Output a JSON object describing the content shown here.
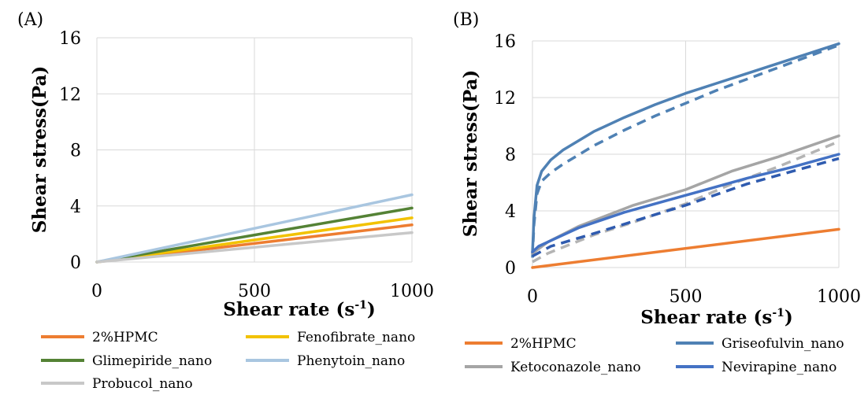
{
  "chart_data": [
    {
      "panel_label": "(A)",
      "type": "line",
      "xlabel": "Shear rate (s",
      "xlabel_sup": "-1",
      "xlabel_close": ")",
      "ylabel": "Shear stress(Pa)",
      "xlim": [
        0,
        1000
      ],
      "ylim": [
        0,
        16
      ],
      "xticks": [
        0,
        500,
        1000
      ],
      "yticks": [
        0,
        4,
        8,
        12,
        16
      ],
      "grid": true,
      "legend_position": "bottom",
      "series": [
        {
          "name": "2%HPMC",
          "color": "#ED7D31",
          "dashed": false,
          "points": [
            [
              0,
              0
            ],
            [
              1000,
              2.65
            ]
          ]
        },
        {
          "name": "Fenofibrate_nano",
          "color": "#F2C200",
          "dashed": false,
          "points": [
            [
              0,
              0
            ],
            [
              1000,
              3.15
            ]
          ]
        },
        {
          "name": "Glimepiride_nano",
          "color": "#548235",
          "dashed": false,
          "points": [
            [
              0,
              0
            ],
            [
              1000,
              3.85
            ]
          ]
        },
        {
          "name": "Phenytoin_nano",
          "color": "#A9C6E0",
          "dashed": false,
          "points": [
            [
              0,
              0
            ],
            [
              1000,
              4.8
            ]
          ]
        },
        {
          "name": "Probucol_nano",
          "color": "#C8C8C8",
          "dashed": false,
          "points": [
            [
              0,
              0
            ],
            [
              1000,
              2.1
            ]
          ]
        }
      ]
    },
    {
      "panel_label": "(B)",
      "type": "line",
      "xlabel": "Shear rate (s",
      "xlabel_sup": "-1",
      "xlabel_close": ")",
      "ylabel": "Shear stress(Pa)",
      "xlim": [
        0,
        1000
      ],
      "ylim": [
        0,
        16
      ],
      "xticks": [
        0,
        500,
        1000
      ],
      "yticks": [
        0,
        4,
        8,
        12,
        16
      ],
      "grid": true,
      "legend_position": "bottom",
      "series": [
        {
          "name": "2%HPMC",
          "color": "#ED7D31",
          "dashed": false,
          "points": [
            [
              0,
              0
            ],
            [
              1000,
              2.7
            ]
          ]
        },
        {
          "name": "Griseofulvin_nano",
          "color": "#4F81B4",
          "dashed": false,
          "points": [
            [
              0,
              1
            ],
            [
              5,
              3.5
            ],
            [
              15,
              5.8
            ],
            [
              30,
              6.8
            ],
            [
              60,
              7.6
            ],
            [
              100,
              8.3
            ],
            [
              200,
              9.6
            ],
            [
              300,
              10.6
            ],
            [
              400,
              11.5
            ],
            [
              500,
              12.3
            ],
            [
              600,
              13.0
            ],
            [
              700,
              13.7
            ],
            [
              800,
              14.4
            ],
            [
              900,
              15.1
            ],
            [
              1000,
              15.8
            ]
          ]
        },
        {
          "name": "",
          "color": "#4F81B4",
          "dashed": true,
          "points": [
            [
              0,
              0.7
            ],
            [
              5,
              3
            ],
            [
              15,
              5.2
            ],
            [
              30,
              6.1
            ],
            [
              60,
              6.7
            ],
            [
              100,
              7.3
            ],
            [
              200,
              8.6
            ],
            [
              300,
              9.7
            ],
            [
              400,
              10.7
            ],
            [
              500,
              11.6
            ],
            [
              600,
              12.5
            ],
            [
              700,
              13.3
            ],
            [
              800,
              14.1
            ],
            [
              900,
              14.9
            ],
            [
              1000,
              15.7
            ]
          ]
        },
        {
          "name": "Ketoconazole_nano",
          "color": "#A5A5A5",
          "dashed": false,
          "points": [
            [
              0,
              1.0
            ],
            [
              50,
              1.8
            ],
            [
              150,
              2.9
            ],
            [
              330,
              4.4
            ],
            [
              500,
              5.5
            ],
            [
              650,
              6.8
            ],
            [
              800,
              7.8
            ],
            [
              1000,
              9.3
            ]
          ]
        },
        {
          "name": "",
          "color": "#B4B4B4",
          "dashed": true,
          "points": [
            [
              0,
              0.4
            ],
            [
              50,
              1.0
            ],
            [
              200,
              2.3
            ],
            [
              330,
              3.2
            ],
            [
              500,
              4.5
            ],
            [
              650,
              5.9
            ],
            [
              800,
              7.1
            ],
            [
              1000,
              8.9
            ]
          ]
        },
        {
          "name": "Nevirapine_nano",
          "color": "#4472C4",
          "dashed": false,
          "points": [
            [
              0,
              1.1
            ],
            [
              20,
              1.5
            ],
            [
              60,
              1.9
            ],
            [
              150,
              2.8
            ],
            [
              300,
              3.9
            ],
            [
              500,
              5.1
            ],
            [
              700,
              6.3
            ],
            [
              850,
              7.1
            ],
            [
              1000,
              8.0
            ]
          ]
        },
        {
          "name": "",
          "color": "#2F5BAF",
          "dashed": true,
          "points": [
            [
              0,
              0.8
            ],
            [
              60,
              1.5
            ],
            [
              200,
              2.4
            ],
            [
              350,
              3.4
            ],
            [
              500,
              4.4
            ],
            [
              700,
              5.9
            ],
            [
              850,
              6.8
            ],
            [
              1000,
              7.7
            ]
          ]
        }
      ]
    }
  ]
}
